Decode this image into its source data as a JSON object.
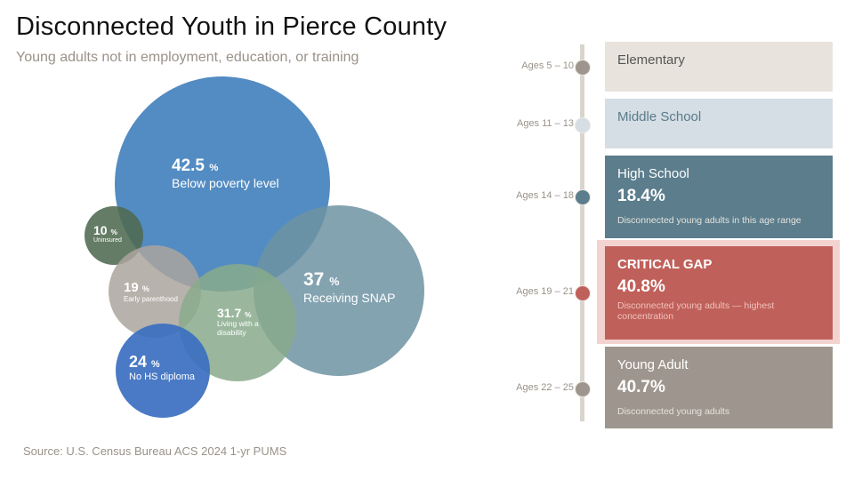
{
  "header": {
    "title": "Disconnected Youth in Pierce County",
    "subtitle": "Young adults not in employment, education, or training"
  },
  "source": "Source: U.S. Census Bureau ACS 2024 1-yr PUMS",
  "chart_data": {
    "type": "bubble",
    "unit": "%",
    "bubbles": [
      {
        "id": "poverty",
        "value": "42.5",
        "label": "Below poverty level",
        "color": "#4a86bf"
      },
      {
        "id": "snap",
        "value": "37",
        "label": "Receiving SNAP",
        "color": "#6f93a2"
      },
      {
        "id": "uninsured",
        "value": "10",
        "label": "Uninsured",
        "color": "#4e6a50"
      },
      {
        "id": "parenthood",
        "value": "19",
        "label": "Early parenthood",
        "color": "#aba59d"
      },
      {
        "id": "disability",
        "value": "31.7",
        "label": "Living with a disability",
        "color": "#88aa8c"
      },
      {
        "id": "nohs",
        "value": "24",
        "label": "No HS diploma",
        "color": "#3b6fc0"
      }
    ]
  },
  "timeline": [
    {
      "age": "Ages 5 – 10",
      "title": "Elementary",
      "dot_color": "#9e968e",
      "bg": "#e8e4dd",
      "title_color": "#555"
    },
    {
      "age": "Ages 11 – 13",
      "title": "Middle School",
      "dot_color": "#d5dde5",
      "bg": "#d5dde5",
      "title_color": "#5a7c8a"
    },
    {
      "age": "Ages 14 – 18",
      "title": "High School",
      "value": "18.4%",
      "desc": "Disconnected young adults in this age range",
      "dot_color": "#5b7d8c",
      "bg": "#5b7d8c"
    },
    {
      "age": "Ages 19 – 21",
      "title": "CRITICAL GAP",
      "value": "40.8%",
      "desc": "Disconnected young adults — highest concentration",
      "dot_color": "#c0605a",
      "bg": "#c0605a",
      "highlight": true
    },
    {
      "age": "Ages 22 – 25",
      "title": "Young Adult",
      "value": "40.7%",
      "desc": "Disconnected young adults",
      "dot_color": "#9e968e",
      "bg": "#9e968e"
    }
  ]
}
